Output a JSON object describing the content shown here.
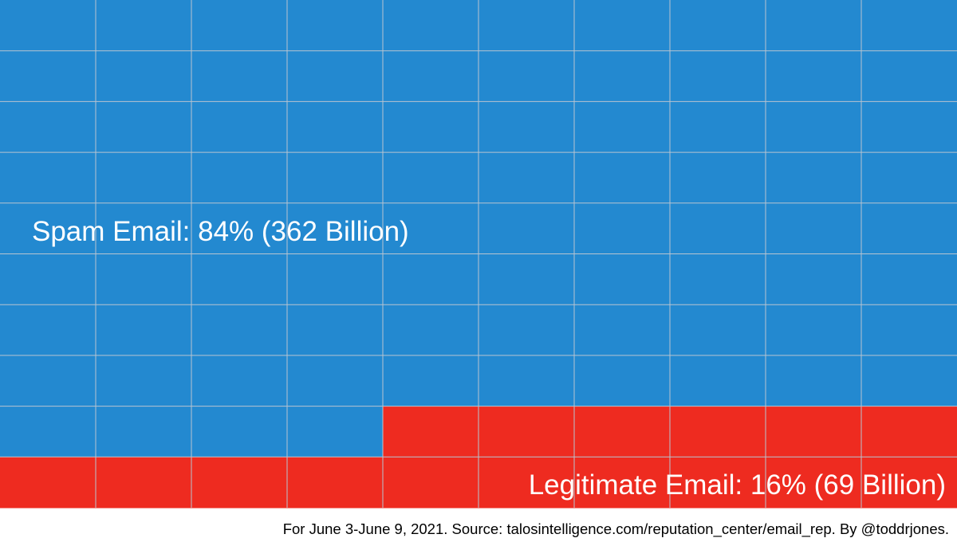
{
  "chart_data": {
    "type": "waffle",
    "grid": {
      "columns": 10,
      "rows": 10
    },
    "series": [
      {
        "label": "Spam Email: 84% (362 Billion)",
        "percent": 84,
        "value": 362,
        "unit": "Billion",
        "cells": 84,
        "color": "#2389d0"
      },
      {
        "label": "Legitimate Email: 16% (69 Billion)",
        "percent": 16,
        "value": 69,
        "unit": "Billion",
        "cells": 16,
        "color": "#ee2b20"
      }
    ],
    "gridline_color": "#b8c4d0",
    "footnote": "For June 3-June 9, 2021. Source: talosintelligence.com/reputation_center/email_rep. By @toddrjones."
  }
}
